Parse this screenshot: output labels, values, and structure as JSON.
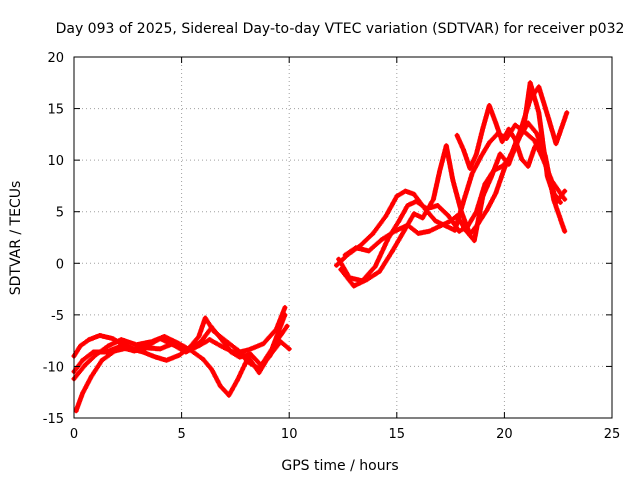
{
  "chart_data": {
    "type": "scatter",
    "title": "Day 093 of 2025, Sidereal Day-to-day VTEC variation (SDTVAR) for receiver p032",
    "xlabel": "GPS time / hours",
    "ylabel": "SDTVAR / TECUs",
    "xlim": [
      0,
      25
    ],
    "ylim": [
      -15,
      20
    ],
    "x_ticks": [
      "0",
      "5",
      "10",
      "15",
      "20",
      "25"
    ],
    "y_ticks": [
      "-15",
      "-10",
      "-5",
      "0",
      "5",
      "10",
      "15",
      "20"
    ],
    "grid": true,
    "legend": "none",
    "marker": "+",
    "series": [
      {
        "color": "#ff0000",
        "x": [
          0.0,
          0.3,
          0.7,
          1.2,
          1.8,
          2.3,
          2.8,
          3.5,
          4.0,
          4.6,
          5.2,
          5.8,
          6.3,
          6.9,
          7.5,
          8.1,
          8.8,
          9.4,
          9.8
        ],
        "y": [
          -9.0,
          -8.0,
          -7.4,
          -7.0,
          -7.3,
          -7.9,
          -8.3,
          -7.9,
          -7.3,
          -7.9,
          -8.6,
          -8.0,
          -7.4,
          -8.1,
          -8.7,
          -8.4,
          -7.8,
          -6.4,
          -4.3
        ]
      },
      {
        "color": "#ff0000",
        "x": [
          0.0,
          0.4,
          0.9,
          1.5,
          2.1,
          2.8,
          3.4,
          4.0,
          4.6,
          5.3,
          5.9,
          6.4,
          6.9,
          7.3,
          7.7,
          8.2,
          8.7,
          9.2,
          9.8
        ],
        "y": [
          -10.5,
          -9.4,
          -8.6,
          -8.6,
          -8.1,
          -8.5,
          -8.2,
          -8.3,
          -7.8,
          -8.4,
          -7.6,
          -6.2,
          -7.5,
          -8.6,
          -9.1,
          -8.8,
          -9.9,
          -8.3,
          -5.0
        ]
      },
      {
        "color": "#ff0000",
        "x": [
          0.1,
          0.4,
          0.8,
          1.3,
          1.9,
          2.5,
          3.2,
          3.8,
          4.3,
          4.9,
          5.4,
          5.8,
          6.1,
          6.5,
          7.1,
          7.6,
          8.1,
          8.6,
          9.1,
          9.5,
          9.9
        ],
        "y": [
          -14.3,
          -12.6,
          -11.0,
          -9.4,
          -8.5,
          -8.2,
          -8.6,
          -9.1,
          -9.4,
          -8.9,
          -8.1,
          -7.1,
          -5.3,
          -6.6,
          -7.6,
          -8.4,
          -9.6,
          -10.2,
          -9.0,
          -7.3,
          -6.1
        ]
      },
      {
        "color": "#ff0000",
        "x": [
          0.0,
          0.5,
          1.0,
          1.6,
          2.2,
          2.9,
          3.6,
          4.2,
          4.8,
          5.4,
          6.0,
          6.4,
          6.8,
          7.2,
          7.6,
          8.1,
          8.6,
          9.0,
          9.6,
          10.0
        ],
        "y": [
          -11.2,
          -9.9,
          -8.9,
          -8.0,
          -7.4,
          -7.9,
          -7.6,
          -7.1,
          -7.7,
          -8.4,
          -9.3,
          -10.3,
          -11.9,
          -12.8,
          -11.3,
          -9.1,
          -10.6,
          -9.2,
          -7.6,
          -8.3
        ]
      },
      {
        "color": "#ff0000",
        "x": [
          12.2,
          12.7,
          13.3,
          13.9,
          14.5,
          15.0,
          15.4,
          15.8,
          16.3,
          16.8,
          17.3,
          17.7,
          18.1,
          18.5,
          18.9,
          19.3,
          19.7,
          20.1,
          20.5,
          20.9,
          21.4,
          21.8,
          22.2,
          22.8
        ],
        "y": [
          -0.2,
          0.8,
          1.7,
          2.9,
          4.6,
          6.5,
          7.0,
          6.7,
          5.3,
          4.1,
          3.6,
          3.2,
          6.0,
          8.7,
          10.3,
          11.7,
          12.6,
          12.1,
          13.4,
          12.8,
          11.9,
          10.1,
          8.0,
          6.2
        ]
      },
      {
        "color": "#ff0000",
        "x": [
          12.3,
          12.8,
          13.4,
          14.0,
          14.6,
          15.1,
          15.5,
          15.9,
          16.4,
          16.9,
          17.4,
          17.9,
          18.3,
          18.7,
          19.1,
          19.5,
          19.9,
          20.3,
          20.7,
          21.1,
          21.5,
          21.9,
          22.3,
          22.8
        ],
        "y": [
          0.4,
          -1.4,
          -1.7,
          -0.3,
          2.4,
          4.1,
          5.6,
          6.0,
          5.3,
          5.6,
          4.6,
          3.1,
          3.6,
          5.0,
          7.7,
          9.0,
          9.4,
          10.3,
          12.2,
          13.6,
          12.6,
          10.4,
          6.1,
          3.1
        ]
      },
      {
        "color": "#ff0000",
        "x": [
          12.4,
          13.0,
          13.6,
          14.2,
          14.8,
          15.3,
          15.8,
          16.2,
          16.7,
          17.0,
          17.3,
          17.6,
          18.0,
          18.4,
          18.8,
          19.2,
          19.6,
          20.0,
          20.4,
          20.8,
          21.2,
          21.6,
          22.0,
          22.4,
          22.9
        ],
        "y": [
          -0.6,
          -2.2,
          -1.6,
          -0.8,
          1.2,
          3.0,
          4.8,
          4.4,
          6.2,
          9.0,
          11.4,
          8.1,
          5.0,
          2.8,
          3.9,
          5.2,
          6.8,
          9.2,
          11.0,
          13.2,
          15.9,
          17.1,
          14.4,
          11.6,
          14.6
        ]
      },
      {
        "color": "#ff0000",
        "x": [
          12.6,
          13.1,
          13.7,
          14.3,
          14.9,
          15.5,
          16.0,
          16.5,
          17.0,
          17.5,
          17.8,
          18.2,
          18.6,
          19.0,
          19.4,
          19.8,
          20.2,
          20.6,
          20.9,
          21.2,
          21.6,
          22.0,
          22.4,
          22.8
        ],
        "y": [
          0.8,
          1.5,
          1.2,
          2.3,
          3.1,
          3.7,
          2.9,
          3.1,
          3.6,
          4.1,
          4.6,
          3.2,
          2.2,
          6.5,
          8.4,
          10.6,
          9.6,
          11.8,
          13.2,
          17.5,
          14.6,
          8.4,
          5.9,
          7.0
        ]
      },
      {
        "color": "#ff0000",
        "x": [
          17.8,
          18.1,
          18.4,
          18.7,
          19.0,
          19.3,
          19.6,
          19.9,
          20.2,
          20.5,
          20.8,
          21.1,
          21.4,
          21.7,
          22.0,
          22.3,
          22.6
        ],
        "y": [
          12.4,
          11.0,
          9.2,
          10.6,
          13.1,
          15.3,
          13.6,
          11.8,
          13.0,
          12.0,
          10.1,
          9.4,
          11.2,
          12.4,
          9.0,
          6.8,
          5.9
        ]
      }
    ]
  }
}
